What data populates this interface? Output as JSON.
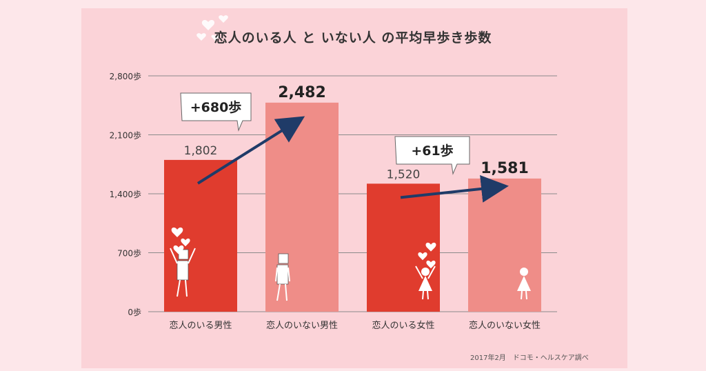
{
  "title": "恋人のいる人 と いない人 の平均早歩き歩数",
  "source": "2017年2月　ドコモ・ヘルスケア調べ",
  "colors": {
    "background": "#fde7ea",
    "panel": "#fbd3d8",
    "bar_with_partner": "#e03c2e",
    "bar_without_partner": "#ef8d88",
    "arrow": "#1f3b68",
    "grid": "#8a8a8a"
  },
  "chart_data": {
    "type": "bar",
    "categories": [
      "恋人のいる男性",
      "恋人のいない男性",
      "恋人のいる女性",
      "恋人のいない女性"
    ],
    "values": [
      1802,
      2482,
      1520,
      1581
    ],
    "value_labels": [
      "1,802",
      "2,482",
      "1,520",
      "1,581"
    ],
    "ylim": [
      0,
      2800
    ],
    "yticks": [
      0,
      700,
      1400,
      2100,
      2800
    ],
    "ytick_labels": [
      "0歩",
      "700歩",
      "1,400歩",
      "2,100歩",
      "2,800歩"
    ],
    "grid": true,
    "annotations": [
      {
        "text": "+680歩",
        "from_category": 0,
        "to_category": 1
      },
      {
        "text": "+61歩",
        "from_category": 2,
        "to_category": 3
      }
    ]
  }
}
